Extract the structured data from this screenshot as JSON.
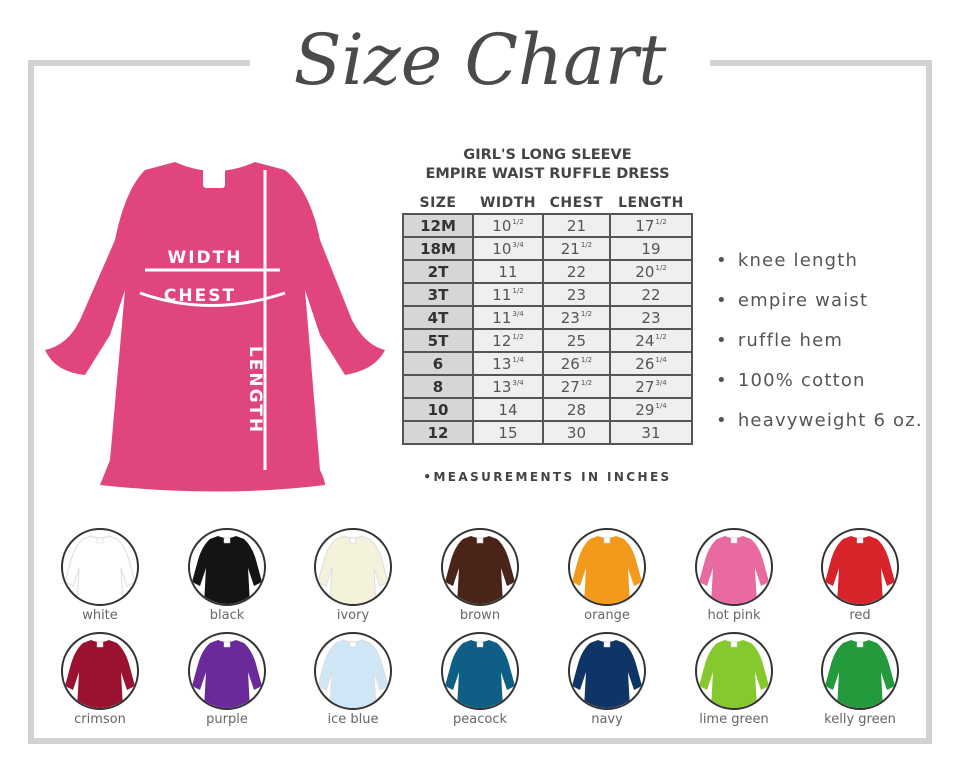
{
  "title": "Size Chart",
  "dress": {
    "color": "#e0457e",
    "labels": {
      "width": "WIDTH",
      "chest": "CHEST",
      "length": "LENGTH"
    }
  },
  "table": {
    "title_line1": "GIRL'S LONG SLEEVE",
    "title_line2": "EMPIRE WAIST RUFFLE DRESS",
    "headers": [
      "SIZE",
      "WIDTH",
      "CHEST",
      "LENGTH"
    ],
    "rows": [
      {
        "size": "12M",
        "width": [
          "10",
          "1/2"
        ],
        "chest": [
          "21",
          ""
        ],
        "length": [
          "17",
          "1/2"
        ]
      },
      {
        "size": "18M",
        "width": [
          "10",
          "3/4"
        ],
        "chest": [
          "21",
          "1/2"
        ],
        "length": [
          "19",
          ""
        ]
      },
      {
        "size": "2T",
        "width": [
          "11",
          ""
        ],
        "chest": [
          "22",
          ""
        ],
        "length": [
          "20",
          "1/2"
        ]
      },
      {
        "size": "3T",
        "width": [
          "11",
          "1/2"
        ],
        "chest": [
          "23",
          ""
        ],
        "length": [
          "22",
          ""
        ]
      },
      {
        "size": "4T",
        "width": [
          "11",
          "3/4"
        ],
        "chest": [
          "23",
          "1/2"
        ],
        "length": [
          "23",
          ""
        ]
      },
      {
        "size": "5T",
        "width": [
          "12",
          "1/2"
        ],
        "chest": [
          "25",
          ""
        ],
        "length": [
          "24",
          "1/2"
        ]
      },
      {
        "size": "6",
        "width": [
          "13",
          "1/4"
        ],
        "chest": [
          "26",
          "1/2"
        ],
        "length": [
          "26",
          "1/4"
        ]
      },
      {
        "size": "8",
        "width": [
          "13",
          "3/4"
        ],
        "chest": [
          "27",
          "1/2"
        ],
        "length": [
          "27",
          "3/4"
        ]
      },
      {
        "size": "10",
        "width": [
          "14",
          ""
        ],
        "chest": [
          "28",
          ""
        ],
        "length": [
          "29",
          "1/4"
        ]
      },
      {
        "size": "12",
        "width": [
          "15",
          ""
        ],
        "chest": [
          "30",
          ""
        ],
        "length": [
          "31",
          ""
        ]
      }
    ],
    "note": "•MEASUREMENTS IN INCHES"
  },
  "features": [
    "knee length",
    "empire waist",
    "ruffle hem",
    "100% cotton",
    "heavyweight 6 oz."
  ],
  "colors": [
    {
      "name": "white",
      "hex": "#ffffff"
    },
    {
      "name": "black",
      "hex": "#141414"
    },
    {
      "name": "ivory",
      "hex": "#f5f2dc"
    },
    {
      "name": "brown",
      "hex": "#4a2419"
    },
    {
      "name": "orange",
      "hex": "#f39a1c"
    },
    {
      "name": "hot pink",
      "hex": "#e96aa0"
    },
    {
      "name": "red",
      "hex": "#d8232a"
    },
    {
      "name": "crimson",
      "hex": "#9b1230"
    },
    {
      "name": "purple",
      "hex": "#6a2a9a"
    },
    {
      "name": "ice blue",
      "hex": "#cfe6f7"
    },
    {
      "name": "peacock",
      "hex": "#0f5e85"
    },
    {
      "name": "navy",
      "hex": "#0f3566"
    },
    {
      "name": "lime green",
      "hex": "#86c92e"
    },
    {
      "name": "kelly green",
      "hex": "#239a3c"
    }
  ]
}
